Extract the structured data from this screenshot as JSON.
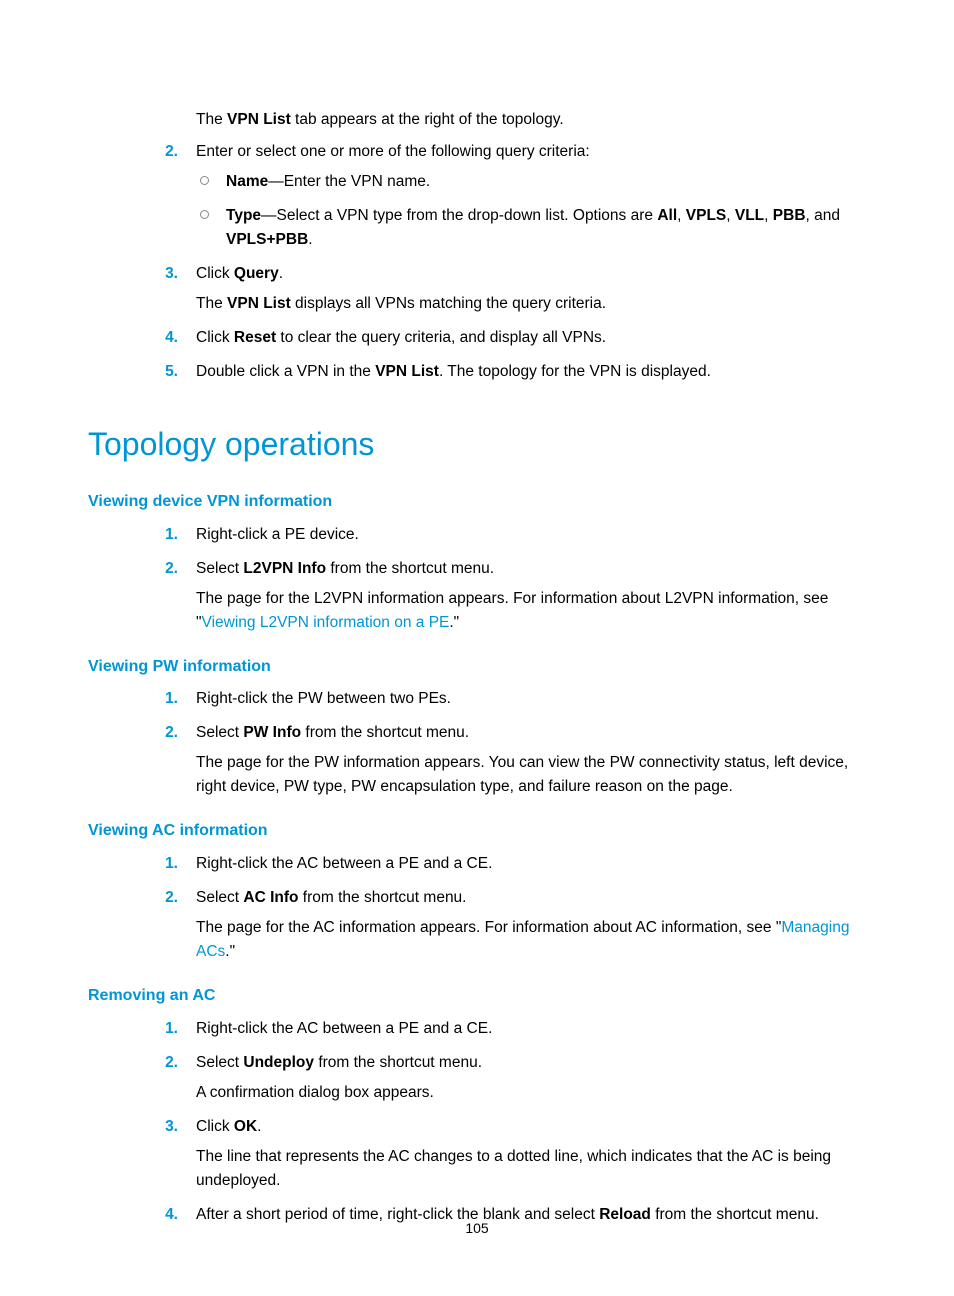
{
  "colors": {
    "accent": "#0096d6",
    "text": "#000000",
    "background": "#ffffff",
    "circle_border": "#888888"
  },
  "typography": {
    "body_font": "Arial",
    "body_size_pt": 11,
    "h1_size_pt": 24,
    "h2_size_pt": 12
  },
  "page_number": "105",
  "top_block": {
    "pre_text": {
      "before": "The ",
      "bold": "VPN List",
      "after": " tab appears at the right of the topology."
    },
    "steps": [
      {
        "n": "2.",
        "body": "Enter or select one or more of the following query criteria:",
        "sub": [
          {
            "bold": "Name",
            "after": "—Enter the VPN name."
          },
          {
            "bold": "Type",
            "after1": "—Select a VPN type from the drop-down list. Options are ",
            "opt1": "All",
            "sep1": ", ",
            "opt2": "VPLS",
            "sep2": ", ",
            "opt3": "VLL",
            "sep3": ", ",
            "opt4": "PBB",
            "after2": ", and ",
            "opt5": "VPLS+PBB",
            "period": "."
          }
        ]
      },
      {
        "n": "3.",
        "body_pre": "Click ",
        "body_bold": "Query",
        "body_post": ".",
        "note_pre": "The ",
        "note_bold": "VPN List",
        "note_post": " displays all VPNs matching the query criteria."
      },
      {
        "n": "4.",
        "body_pre": "Click ",
        "body_bold": "Reset",
        "body_post": " to clear the query criteria, and display all VPNs."
      },
      {
        "n": "5.",
        "body_pre": "Double click a VPN in the ",
        "body_bold": "VPN List",
        "body_post": ". The topology for the VPN is displayed."
      }
    ]
  },
  "h1": "Topology operations",
  "sections": [
    {
      "title": "Viewing device VPN information",
      "steps": [
        {
          "n": "1.",
          "body": "Right-click a PE device."
        },
        {
          "n": "2.",
          "body_pre": "Select ",
          "body_bold": "L2VPN Info",
          "body_post": " from the shortcut menu.",
          "note_pre": "The page for the L2VPN information appears. For information about L2VPN information, see \"",
          "note_link": "Viewing L2VPN information on a PE",
          "note_post": ".\""
        }
      ]
    },
    {
      "title": "Viewing PW information",
      "steps": [
        {
          "n": "1.",
          "body": "Right-click the PW between two PEs."
        },
        {
          "n": "2.",
          "body_pre": "Select ",
          "body_bold": "PW Info",
          "body_post": " from the shortcut menu.",
          "note": "The page for the PW information appears. You can view the PW connectivity status, left device, right device, PW type, PW encapsulation type, and failure reason on the page."
        }
      ]
    },
    {
      "title": "Viewing AC information",
      "steps": [
        {
          "n": "1.",
          "body": "Right-click the AC between a PE and a CE."
        },
        {
          "n": "2.",
          "body_pre": "Select ",
          "body_bold": "AC Info",
          "body_post": " from the shortcut menu.",
          "note_pre": "The page for the AC information appears. For information about AC information, see \"",
          "note_link": "Managing ACs",
          "note_post": ".\""
        }
      ]
    },
    {
      "title": "Removing an AC",
      "steps": [
        {
          "n": "1.",
          "body": "Right-click the AC between a PE and a CE."
        },
        {
          "n": "2.",
          "body_pre": "Select ",
          "body_bold": "Undeploy",
          "body_post": " from the shortcut menu.",
          "note": "A confirmation dialog box appears."
        },
        {
          "n": "3.",
          "body_pre": "Click ",
          "body_bold": "OK",
          "body_post": ".",
          "note": "The line that represents the AC changes to a dotted line, which indicates that the AC is being undeployed."
        },
        {
          "n": "4.",
          "body_pre": "After a short period of time, right-click the blank and select ",
          "body_bold": "Reload",
          "body_post": " from the shortcut menu."
        }
      ]
    }
  ]
}
